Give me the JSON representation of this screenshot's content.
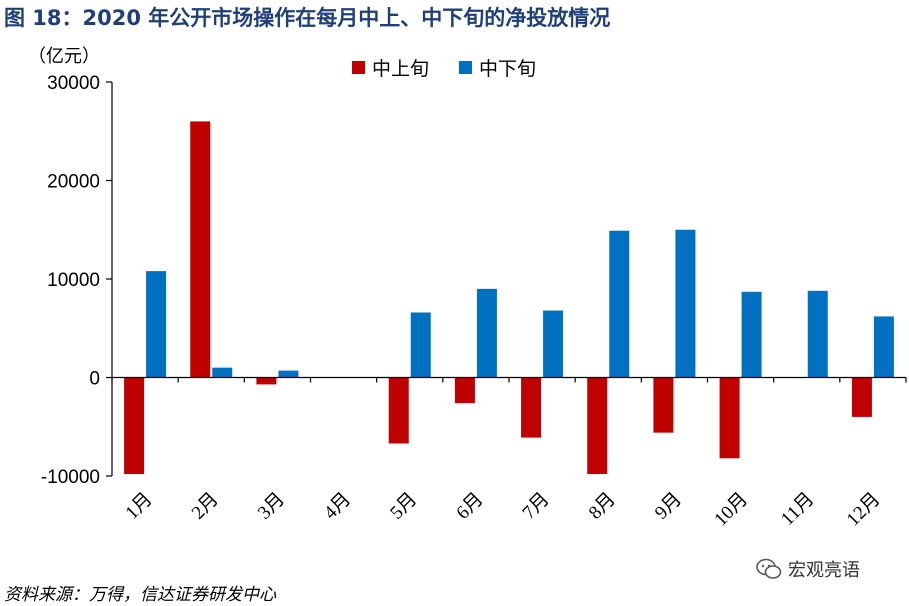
{
  "title": "图 18：2020 年公开市场操作在每月中上、中下旬的净投放情况",
  "unit_label": "（亿元）",
  "source": "资料来源：万得，信达证券研发中心",
  "watermark": "宏观亮语",
  "colors": {
    "series1": "#c00000",
    "series2": "#0070c0",
    "title": "#1f3f7a"
  },
  "chart_data": {
    "type": "bar",
    "categories": [
      "1月",
      "2月",
      "3月",
      "4月",
      "5月",
      "6月",
      "7月",
      "8月",
      "9月",
      "10月",
      "11月",
      "12月"
    ],
    "series": [
      {
        "name": "中上旬",
        "values": [
          -9800,
          26000,
          -700,
          0,
          -6700,
          -2600,
          -6100,
          -9800,
          -5600,
          -8200,
          0,
          -4000
        ]
      },
      {
        "name": "中下旬",
        "values": [
          10800,
          1000,
          700,
          0,
          6600,
          9000,
          6800,
          14900,
          15000,
          8700,
          8800,
          6200
        ]
      }
    ],
    "ylim": [
      -10000,
      30000
    ],
    "yticks": [
      -10000,
      0,
      10000,
      20000,
      30000
    ],
    "ytick_labels": [
      "-10000",
      "0",
      "10000",
      "20000",
      "30000"
    ],
    "legend_position": "top-center",
    "grid": false
  }
}
